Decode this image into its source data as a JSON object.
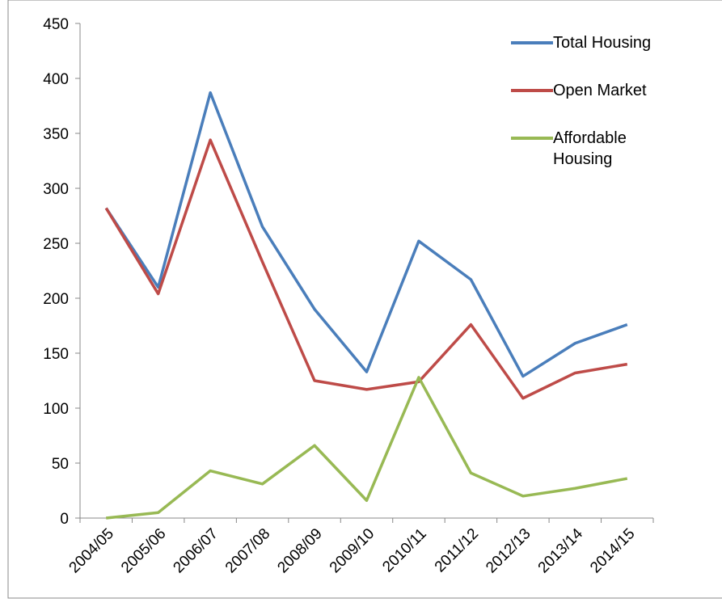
{
  "chart_data": {
    "type": "line",
    "categories": [
      "2004/05",
      "2005/06",
      "2006/07",
      "2007/08",
      "2008/09",
      "2009/10",
      "2010/11",
      "2011/12",
      "2012/13",
      "2013/14",
      "2014/15"
    ],
    "series": [
      {
        "name": "Total Housing",
        "color": "#4a7ebb",
        "values": [
          282,
          210,
          387,
          265,
          190,
          133,
          252,
          217,
          129,
          159,
          176
        ]
      },
      {
        "name": "Open Market",
        "color": "#be4b48",
        "values": [
          282,
          204,
          344,
          233,
          125,
          117,
          124,
          176,
          109,
          132,
          140
        ]
      },
      {
        "name": "Affordable Housing",
        "color": "#98b954",
        "values": [
          0,
          5,
          43,
          31,
          66,
          16,
          128,
          41,
          20,
          27,
          36
        ]
      }
    ],
    "ylim": [
      0,
      450
    ],
    "yticks": [
      0,
      50,
      100,
      150,
      200,
      250,
      300,
      350,
      400,
      450
    ],
    "grid": false,
    "legend": "top-right"
  }
}
